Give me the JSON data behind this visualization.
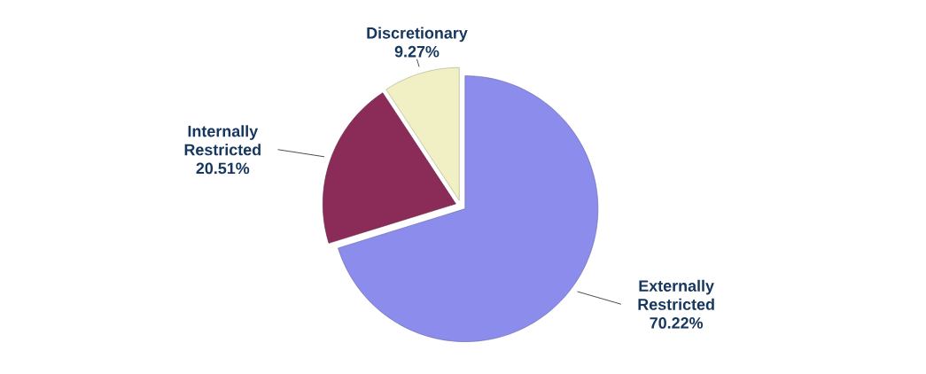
{
  "chart_data": {
    "type": "pie",
    "categories": [
      "Externally Restricted",
      "Internally Restricted",
      "Discretionary"
    ],
    "values": [
      70.22,
      20.51,
      9.27
    ],
    "value_labels": [
      "70.22%",
      "20.51%",
      "9.27%"
    ],
    "colors": [
      "#8c8cec",
      "#8b2c58",
      "#f0f0c4"
    ]
  }
}
